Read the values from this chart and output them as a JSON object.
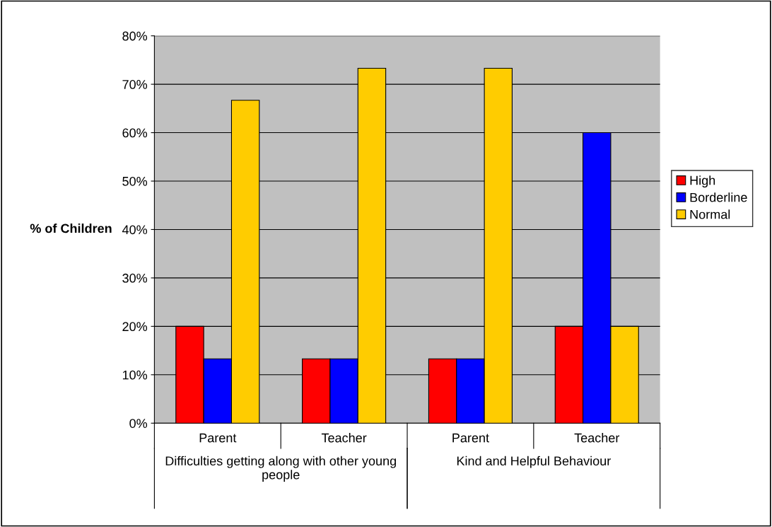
{
  "chart_data": {
    "type": "bar",
    "ylabel": "% of Children",
    "categories": [
      "Parent",
      "Teacher",
      "Parent",
      "Teacher"
    ],
    "series": [
      {
        "name": "High",
        "color": "#ff0000",
        "values": [
          20,
          13.3,
          13.3,
          20
        ]
      },
      {
        "name": "Borderline",
        "color": "#0000ff",
        "values": [
          13.3,
          13.3,
          13.3,
          60
        ]
      },
      {
        "name": "Normal",
        "color": "#ffcc00",
        "values": [
          66.7,
          73.3,
          73.3,
          20
        ]
      }
    ],
    "ylim": [
      0,
      80
    ],
    "yticks": [
      {
        "value": 0,
        "label": "0%"
      },
      {
        "value": 10,
        "label": "10%"
      },
      {
        "value": 20,
        "label": "20%"
      },
      {
        "value": 30,
        "label": "30%"
      },
      {
        "value": 40,
        "label": "40%"
      },
      {
        "value": 50,
        "label": "50%"
      },
      {
        "value": 60,
        "label": "60%"
      },
      {
        "value": 70,
        "label": "70%"
      },
      {
        "value": 80,
        "label": "80%"
      }
    ],
    "grid": "y",
    "legend": "right",
    "annotations": [
      "Difficulties getting along with other young people",
      "Kind and Helpful Behaviour"
    ]
  }
}
